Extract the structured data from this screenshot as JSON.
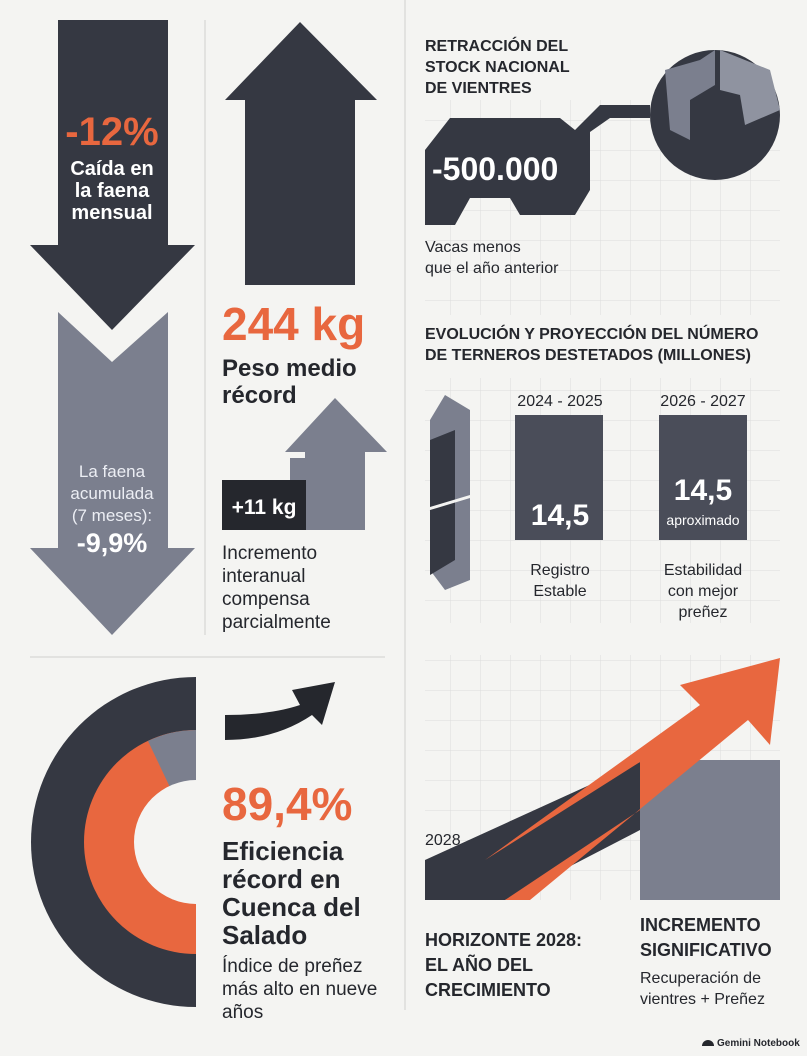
{
  "faena": {
    "value": "-12%",
    "label": [
      "Caída en",
      "la faena",
      "mensual"
    ],
    "accumulated_label": [
      "La faena",
      "acumulada",
      "(7 meses):"
    ],
    "accumulated_value": "-9,9%"
  },
  "weight": {
    "value": "244 kg",
    "label": [
      "Peso medio",
      "récord"
    ],
    "increase": "+11 kg",
    "note": [
      "Incremento",
      "interanual",
      "compensa",
      "parcialmente"
    ]
  },
  "stock": {
    "title": [
      "RETRACCIÓN DEL",
      "STOCK NACIONAL",
      "DE VIENTRES"
    ],
    "value": "-500.000",
    "note": [
      "Vacas menos",
      "que el año anterior"
    ]
  },
  "calves": {
    "title": [
      "EVOLUCIÓN Y PROYECCIÓN DEL NÚMERO",
      "DE TERNEROS DESTETADOS (MILLONES)"
    ],
    "periods": [
      {
        "label": "2024 - 2025",
        "value": "14,5",
        "note": [
          "Registro",
          "Estable"
        ]
      },
      {
        "label": "2026 - 2027",
        "value": "14,5",
        "qualifier": "aproximado",
        "note": [
          "Estabilidad",
          "con mejor",
          "preñez"
        ]
      }
    ]
  },
  "efficiency": {
    "value": "89,4%",
    "label": [
      "Eficiencia",
      "récord en",
      "Cuenca del",
      "Salado"
    ],
    "note": [
      "Índice de preñez",
      "más alto en nueve",
      "años"
    ]
  },
  "horizon": {
    "year": "2028",
    "title": [
      "HORIZONTE 2028:",
      "EL AÑO DEL",
      "CRECIMIENTO"
    ],
    "increase_title": [
      "INCREMENTO",
      "SIGNIFICATIVO"
    ],
    "increase_note": [
      "Recuperación de",
      "vientres + Preñez"
    ]
  },
  "footer": "Gemini Notebook"
}
